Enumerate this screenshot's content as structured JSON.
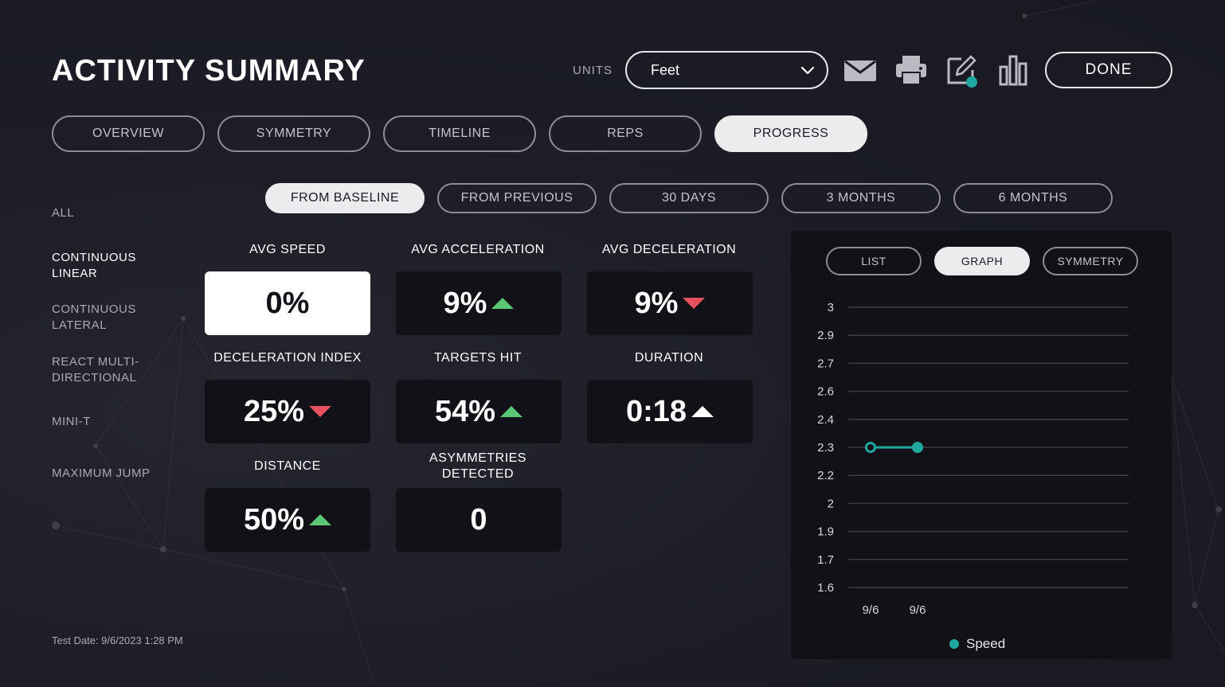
{
  "header": {
    "title": "ACTIVITY SUMMARY",
    "units_label": "UNITS",
    "units_value": "Feet",
    "done_label": "DONE",
    "icons": [
      "mail-icon",
      "print-icon",
      "edit-icon",
      "bar-chart-icon"
    ]
  },
  "tabs": [
    {
      "label": "OVERVIEW",
      "active": false
    },
    {
      "label": "SYMMETRY",
      "active": false
    },
    {
      "label": "TIMELINE",
      "active": false
    },
    {
      "label": "REPS",
      "active": false
    },
    {
      "label": "PROGRESS",
      "active": true
    }
  ],
  "ranges": [
    {
      "label": "FROM BASELINE",
      "active": true
    },
    {
      "label": "FROM PREVIOUS",
      "active": false
    },
    {
      "label": "30 DAYS",
      "active": false
    },
    {
      "label": "3 MONTHS",
      "active": false
    },
    {
      "label": "6 MONTHS",
      "active": false
    }
  ],
  "sidebar": {
    "items": [
      {
        "label": "ALL",
        "active": false
      },
      {
        "label": "CONTINUOUS LINEAR",
        "active": true
      },
      {
        "label": "CONTINUOUS LATERAL",
        "active": false
      },
      {
        "label": "REACT MULTI-DIRECTIONAL",
        "active": false
      },
      {
        "label": "MINI-T",
        "active": false
      },
      {
        "label": "MAXIMUM JUMP",
        "active": false
      }
    ]
  },
  "metrics": [
    {
      "label": "AVG SPEED",
      "value": "0%",
      "trend": "none"
    },
    {
      "label": "AVG ACCELERATION",
      "value": "9%",
      "trend": "up-green"
    },
    {
      "label": "AVG DECELERATION",
      "value": "9%",
      "trend": "down-red"
    },
    {
      "label": "DECELERATION INDEX",
      "value": "25%",
      "trend": "down-red"
    },
    {
      "label": "TARGETS HIT",
      "value": "54%",
      "trend": "up-green"
    },
    {
      "label": "DURATION",
      "value": "0:18",
      "trend": "up-white"
    },
    {
      "label": "DISTANCE",
      "value": "50%",
      "trend": "up-green"
    },
    {
      "label": "ASYMMETRIES DETECTED",
      "value": "0",
      "trend": "none"
    }
  ],
  "footer": {
    "test_date": "Test Date: 9/6/2023 1:28 PM"
  },
  "panel": {
    "tabs": [
      {
        "label": "LIST",
        "active": false
      },
      {
        "label": "GRAPH",
        "active": true
      },
      {
        "label": "SYMMETRY",
        "active": false
      }
    ],
    "legend_label": "Speed"
  },
  "colors": {
    "background": "#1b1c26",
    "card": "#111117",
    "accent_teal": "#1fa89f",
    "trend_up": "#5bc774",
    "trend_down": "#e8525f"
  },
  "chart_data": {
    "type": "line",
    "y_ticks": [
      "3",
      "2.9",
      "2.7",
      "2.6",
      "2.4",
      "2.3",
      "2.2",
      "2",
      "1.9",
      "1.7",
      "1.6"
    ],
    "x": [
      "9/6",
      "9/6"
    ],
    "series": [
      {
        "name": "Speed",
        "values": [
          2.3,
          2.3
        ],
        "color": "#1fa89f"
      }
    ],
    "legend": "bottom-center",
    "grid": true
  }
}
